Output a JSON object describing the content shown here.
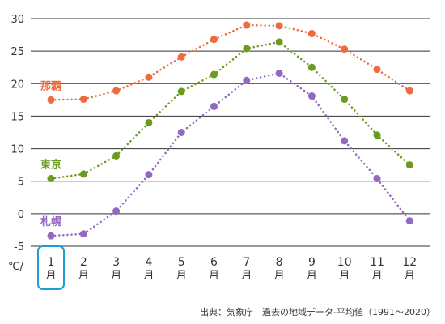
{
  "chart_data": {
    "type": "line",
    "unit_label": "℃/",
    "categories": [
      "1",
      "2",
      "3",
      "4",
      "5",
      "6",
      "7",
      "8",
      "9",
      "10",
      "11",
      "12"
    ],
    "category_unit": "月",
    "highlighted_category": "1",
    "ylim": [
      -5,
      30
    ],
    "yticks": [
      "30",
      "25",
      "20",
      "15",
      "10",
      "5",
      "0",
      "-5"
    ],
    "grid": "horizontal",
    "series": [
      {
        "name": "那覇",
        "color": "#ee6b3f",
        "values": [
          17.5,
          17.6,
          18.9,
          21.0,
          24.1,
          26.8,
          29.0,
          28.9,
          27.7,
          25.3,
          22.2,
          18.9
        ]
      },
      {
        "name": "東京",
        "color": "#6a9b1f",
        "values": [
          5.4,
          6.1,
          8.9,
          14.0,
          18.8,
          21.4,
          25.4,
          26.4,
          22.5,
          17.6,
          12.1,
          7.5
        ]
      },
      {
        "name": "札幌",
        "color": "#9268c1",
        "values": [
          -3.4,
          -3.1,
          0.4,
          6.0,
          12.5,
          16.5,
          20.5,
          21.6,
          18.1,
          11.2,
          5.4,
          -1.1
        ]
      }
    ]
  },
  "source": "出典：気象庁　過去の地域データ-平均値（1991〜2020）",
  "highlight_color": "#1a9ed6"
}
